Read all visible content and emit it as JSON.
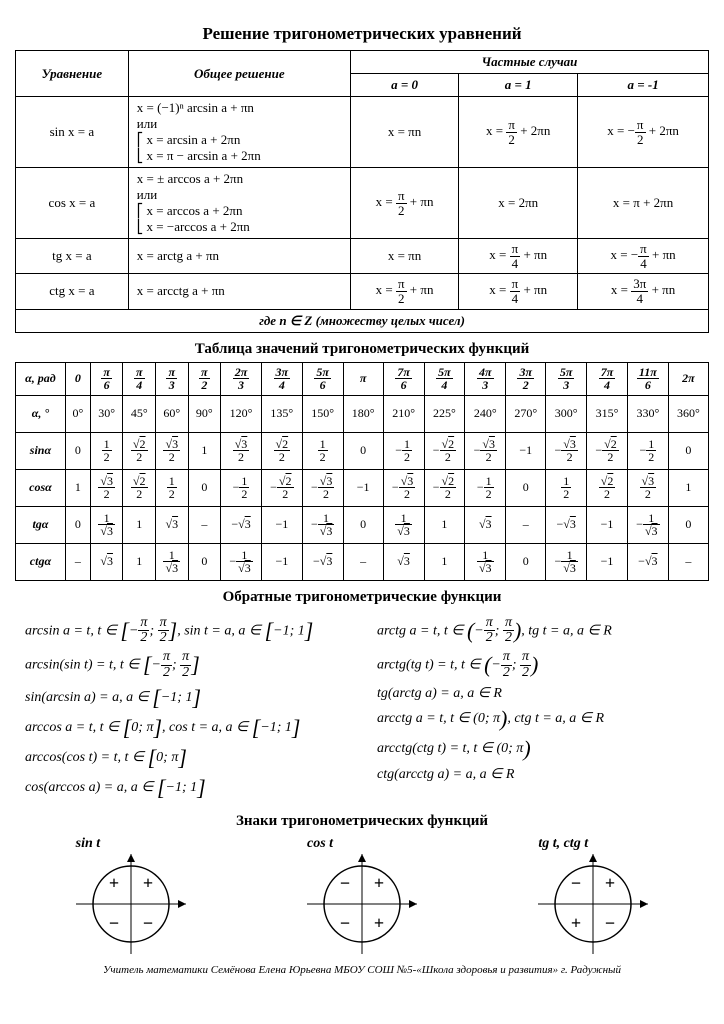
{
  "title1": "Решение тригонометрических уравнений",
  "eq_table": {
    "headers": {
      "eq": "Уравнение",
      "gen": "Общее решение",
      "cases": "Частные случаи",
      "a0": "a = 0",
      "a1": "a = 1",
      "am1": "a = -1"
    },
    "rows": [
      {
        "eq": "sin x = a",
        "gen": "x = (−1)ⁿ arcsin a + πn\nили\n⎡ x = arcsin a + 2πn\n⎣ x = π − arcsin a + 2πn",
        "a0": "x = πn",
        "a1": "x = π/2 + 2πn",
        "am1": "x = −π/2 + 2πn"
      },
      {
        "eq": "cos x = a",
        "gen": "x = ± arccos a + 2πn\nили\n⎡ x = arccos a + 2πn\n⎣ x = −arccos a + 2πn",
        "a0": "x = π/2 + πn",
        "a1": "x = 2πn",
        "am1": "x = π + 2πn"
      },
      {
        "eq": "tg x = a",
        "gen": "x = arctg a + πn",
        "a0": "x = πn",
        "a1": "x = π/4 + πn",
        "am1": "x = −π/4 + πn"
      },
      {
        "eq": "ctg x = a",
        "gen": "x = arcctg a + πn",
        "a0": "x = π/2 + πn",
        "a1": "x = π/4 + πn",
        "am1": "x = 3π/4 + πn"
      }
    ],
    "footnote": "где n ∈ Z (множеству целых чисел)"
  },
  "title2": "Таблица значений тригонометрических функций",
  "val_table": {
    "head_rad_label": "α, рад",
    "head_deg_label": "α, °",
    "angles_rad": [
      "0",
      "π/6",
      "π/4",
      "π/3",
      "π/2",
      "2π/3",
      "3π/4",
      "5π/6",
      "π",
      "7π/6",
      "5π/4",
      "4π/3",
      "3π/2",
      "5π/3",
      "7π/4",
      "11π/6",
      "2π"
    ],
    "angles_deg": [
      "0°",
      "30°",
      "45°",
      "60°",
      "90°",
      "120°",
      "135°",
      "150°",
      "180°",
      "210°",
      "225°",
      "240°",
      "270°",
      "300°",
      "315°",
      "330°",
      "360°"
    ],
    "rows": [
      {
        "label": "sinα",
        "vals": [
          "0",
          "1/2",
          "√2/2",
          "√3/2",
          "1",
          "√3/2",
          "√2/2",
          "1/2",
          "0",
          "−1/2",
          "−√2/2",
          "−√3/2",
          "−1",
          "−√3/2",
          "−√2/2",
          "−1/2",
          "0"
        ]
      },
      {
        "label": "cosα",
        "vals": [
          "1",
          "√3/2",
          "√2/2",
          "1/2",
          "0",
          "−1/2",
          "−√2/2",
          "−√3/2",
          "−1",
          "−√3/2",
          "−√2/2",
          "−1/2",
          "0",
          "1/2",
          "√2/2",
          "√3/2",
          "1"
        ]
      },
      {
        "label": "tgα",
        "vals": [
          "0",
          "1/√3",
          "1",
          "√3",
          "–",
          "−√3",
          "−1",
          "−1/√3",
          "0",
          "1/√3",
          "1",
          "√3",
          "–",
          "−√3",
          "−1",
          "−1/√3",
          "0"
        ]
      },
      {
        "label": "ctgα",
        "vals": [
          "–",
          "√3",
          "1",
          "1/√3",
          "0",
          "−1/√3",
          "−1",
          "−√3",
          "–",
          "√3",
          "1",
          "1/√3",
          "0",
          "−1/√3",
          "−1",
          "−√3",
          "–"
        ]
      }
    ]
  },
  "title3": "Обратные тригонометрические функции",
  "inverse": {
    "left": [
      "arcsin a = t,  t ∈ [−π/2; π/2],  sin t = a,  a ∈ [−1; 1]",
      "arcsin(sin t) = t,  t ∈ [−π/2; π/2]",
      "sin(arcsin a) = a,  a ∈ [−1; 1]",
      "arccos a = t,  t ∈ [0; π],  cos t = a,  a ∈ [−1; 1]",
      "arccos(cos t) = t,  t ∈ [0; π]",
      "cos(arccos a) = a,  a ∈ [−1; 1]"
    ],
    "right": [
      "arctg a = t,  t ∈ (−π/2; π/2),  tg t = a,  a ∈ R",
      "arctg(tg t) = t,  t ∈ (−π/2; π/2)",
      "tg(arctg a) = a,  a ∈ R",
      "arcctg a = t,  t ∈ (0; π),  ctg t = a,  a ∈ R",
      "arcctg(ctg t) = t,  t ∈ (0; π)",
      "ctg(arcctg a) = a,  a ∈ R"
    ]
  },
  "title4": "Знаки тригонометрических функций",
  "signs": [
    {
      "label": "sin t",
      "q": [
        "+",
        "+",
        "−",
        "−"
      ]
    },
    {
      "label": "cos t",
      "q": [
        "−",
        "+",
        "−",
        "+"
      ]
    },
    {
      "label": "tg t,  ctg t",
      "q": [
        "−",
        "+",
        "+",
        "−"
      ]
    }
  ],
  "footer": "Учитель математики Семёнова Елена Юрьевна МБОУ СОШ №5-«Школа здоровья и развития» г. Радужный",
  "colors": {
    "border": "#000000",
    "bg": "#ffffff",
    "head_bg": "#f2f2f2"
  }
}
